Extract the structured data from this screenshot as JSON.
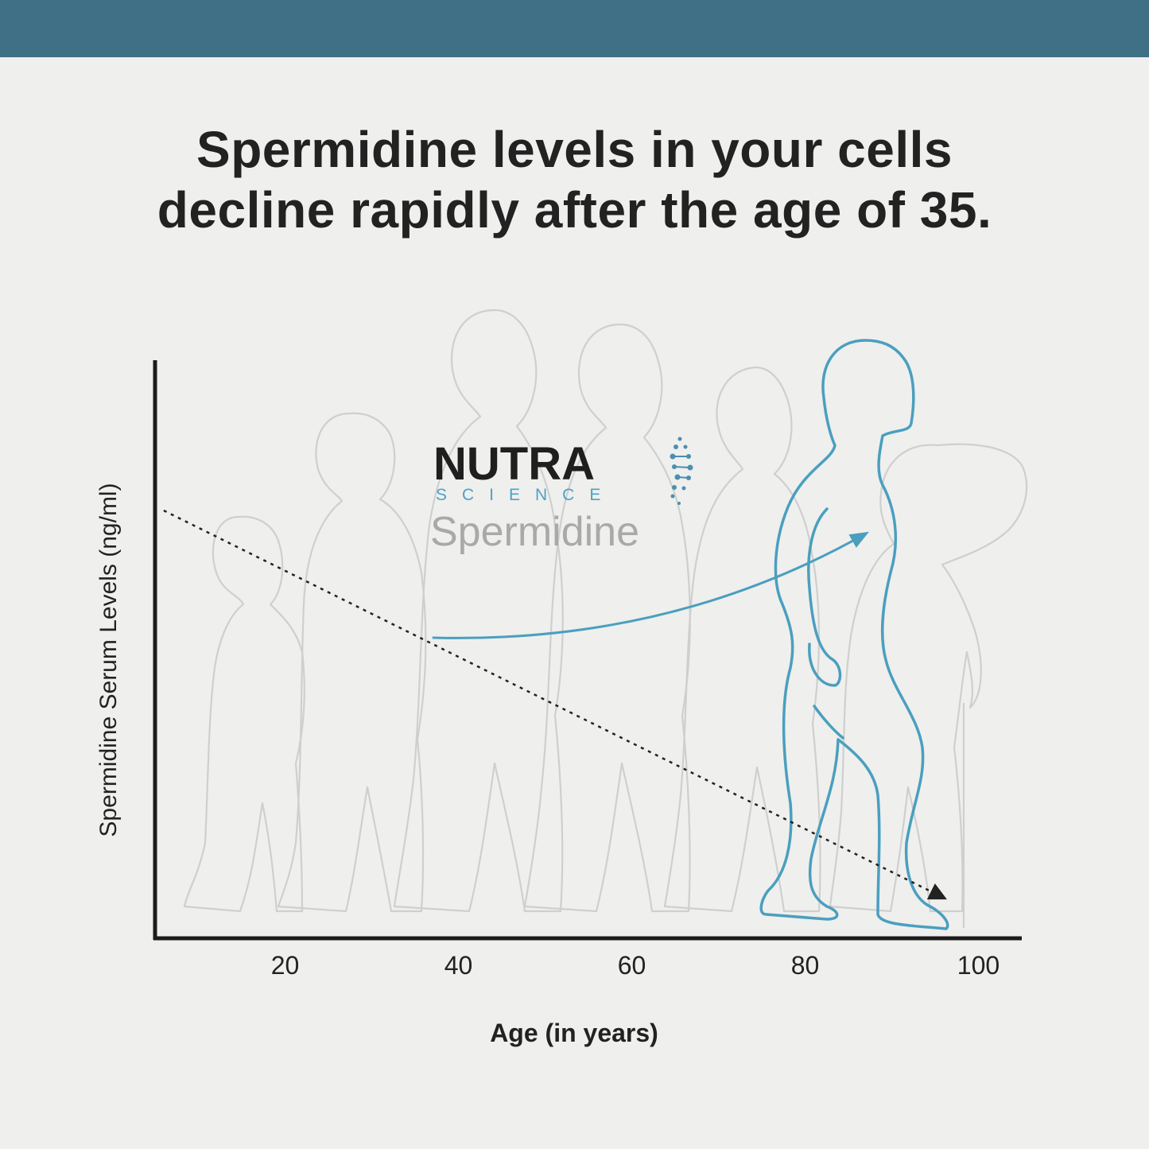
{
  "header": {
    "bar_color": "#3f7085"
  },
  "title": {
    "line1": "Spermidine levels in your cells",
    "line2": "decline rapidly after the age of 35."
  },
  "brand": {
    "name": "NUTRA",
    "sub": "SCIENCE",
    "product": "Spermidine",
    "accent_color": "#4aa3c8",
    "icon": "dna-helix-icon"
  },
  "chart_data": {
    "type": "line",
    "title": "Spermidine levels in your cells decline rapidly after the age of 35.",
    "xlabel": "Age (in years)",
    "ylabel": "Spermidine Serum Levels (ng/ml)",
    "xlim": [
      5,
      105
    ],
    "ylim": [
      0,
      100
    ],
    "x_ticks": [
      20,
      40,
      60,
      80,
      100
    ],
    "y_ticks": [],
    "grid": false,
    "series": [
      {
        "style": "dotted",
        "color": "#222222",
        "arrow_end": true,
        "points": [
          [
            6,
            74
          ],
          [
            96,
            7
          ]
        ]
      }
    ],
    "annotations": [
      {
        "type": "curved-arrow",
        "color": "#4a9fbf",
        "from": [
          37,
          52
        ],
        "to": [
          87,
          70
        ]
      }
    ]
  }
}
